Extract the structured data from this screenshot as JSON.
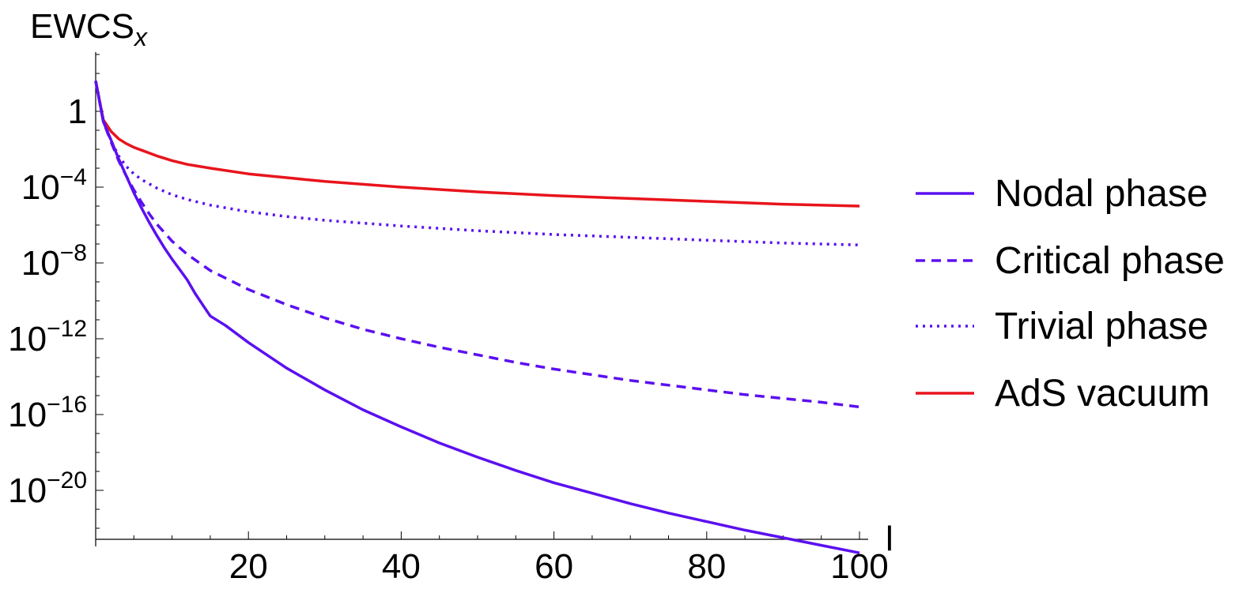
{
  "chart_data": {
    "type": "line",
    "ylabel_main": "EWCS",
    "ylabel_sub": "x",
    "xlabel": "l",
    "y_scale": "log",
    "xlim": [
      0,
      100
    ],
    "ylim_log10": [
      -23,
      3
    ],
    "x_ticks": [
      20,
      40,
      60,
      80,
      100
    ],
    "x_tick_labels": [
      "20",
      "40",
      "60",
      "80",
      "100"
    ],
    "y_ticks": [
      {
        "log10": 0,
        "base": "1",
        "exp": ""
      },
      {
        "log10": -4,
        "base": "10",
        "exp": "−4"
      },
      {
        "log10": -8,
        "base": "10",
        "exp": "−8"
      },
      {
        "log10": -12,
        "base": "10",
        "exp": "−12"
      },
      {
        "log10": -16,
        "base": "10",
        "exp": "−16"
      },
      {
        "log10": -20,
        "base": "10",
        "exp": "−20"
      }
    ],
    "grid": false,
    "legend_position": "right",
    "series": [
      {
        "name": "Nodal phase",
        "color": "#5b10f0",
        "style": "solid",
        "x": [
          0,
          1,
          2,
          3,
          4,
          5,
          6,
          7,
          8,
          9,
          10,
          11,
          12,
          13,
          14,
          15,
          17,
          20,
          25,
          30,
          35,
          40,
          45,
          50,
          55,
          60,
          65,
          70,
          75,
          80,
          85,
          90,
          95,
          100
        ],
        "log10_y": [
          1.6,
          -0.55,
          -1.5,
          -2.5,
          -3.4,
          -4.3,
          -5.1,
          -5.85,
          -6.55,
          -7.2,
          -7.8,
          -8.35,
          -8.9,
          -9.6,
          -10.2,
          -10.8,
          -11.3,
          -12.2,
          -13.55,
          -14.7,
          -15.75,
          -16.65,
          -17.5,
          -18.25,
          -18.95,
          -19.6,
          -20.15,
          -20.7,
          -21.2,
          -21.65,
          -22.1,
          -22.5,
          -22.9,
          -23.3
        ]
      },
      {
        "name": "Critical phase",
        "color": "#5b10f0",
        "style": "dashed",
        "x": [
          0,
          1,
          2,
          3,
          4,
          5,
          6,
          7,
          8,
          10,
          12,
          15,
          20,
          25,
          30,
          35,
          40,
          45,
          50,
          55,
          60,
          65,
          70,
          75,
          80,
          85,
          90,
          95,
          100
        ],
        "log10_y": [
          1.6,
          -0.55,
          -1.6,
          -2.6,
          -3.4,
          -4.15,
          -4.8,
          -5.4,
          -5.95,
          -6.85,
          -7.55,
          -8.4,
          -9.4,
          -10.2,
          -10.9,
          -11.5,
          -12.0,
          -12.45,
          -12.85,
          -13.25,
          -13.6,
          -13.9,
          -14.2,
          -14.45,
          -14.7,
          -14.95,
          -15.15,
          -15.35,
          -15.6
        ]
      },
      {
        "name": "Trivial phase",
        "color": "#5b10f0",
        "style": "dotted",
        "x": [
          0,
          1,
          2,
          3,
          4,
          5,
          6,
          8,
          10,
          12,
          15,
          20,
          25,
          30,
          40,
          50,
          60,
          70,
          80,
          90,
          100
        ],
        "log10_y": [
          1.6,
          -0.45,
          -1.55,
          -2.35,
          -2.9,
          -3.3,
          -3.6,
          -4.05,
          -4.4,
          -4.65,
          -4.95,
          -5.3,
          -5.55,
          -5.75,
          -6.05,
          -6.3,
          -6.5,
          -6.65,
          -6.8,
          -6.95,
          -7.05
        ]
      },
      {
        "name": "AdS vacuum",
        "color": "#e8141c",
        "style": "solid",
        "x": [
          0,
          1,
          2,
          3,
          4,
          5,
          6,
          8,
          10,
          12,
          15,
          20,
          25,
          30,
          40,
          50,
          60,
          70,
          80,
          90,
          100
        ],
        "log10_y": [
          1.6,
          -0.45,
          -1.05,
          -1.45,
          -1.7,
          -1.9,
          -2.05,
          -2.35,
          -2.6,
          -2.8,
          -3.0,
          -3.3,
          -3.5,
          -3.7,
          -4.0,
          -4.25,
          -4.45,
          -4.6,
          -4.75,
          -4.9,
          -5.0
        ]
      }
    ]
  }
}
